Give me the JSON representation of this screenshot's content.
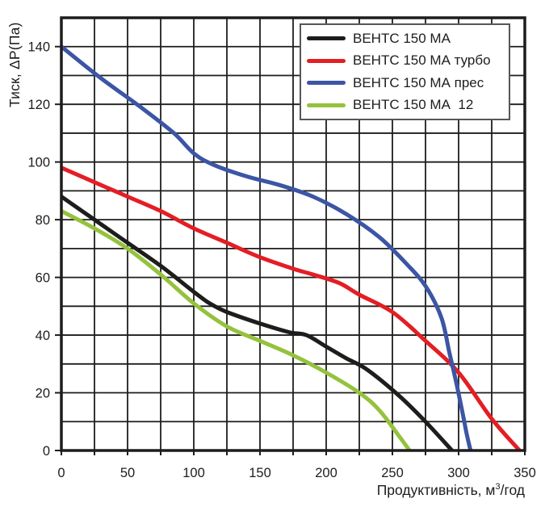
{
  "chart_data": {
    "type": "line",
    "title": "",
    "xlabel": "Продуктивність, м³/год",
    "xlabel_parts": {
      "prefix": "Продуктивність, м",
      "sup": "3",
      "suffix": "/год"
    },
    "ylabel": "Тиск, ΔP(Па)",
    "xlim": [
      0,
      350
    ],
    "ylim": [
      0,
      150
    ],
    "x_grid_step": 25,
    "y_grid_step": 10,
    "x_tick_labels": [
      "0",
      "50",
      "100",
      "150",
      "200",
      "250",
      "300",
      "350"
    ],
    "x_tick_values": [
      0,
      50,
      100,
      150,
      200,
      250,
      300,
      350
    ],
    "y_tick_labels": [
      "0",
      "20",
      "40",
      "60",
      "80",
      "100",
      "120",
      "140"
    ],
    "y_tick_values": [
      0,
      20,
      40,
      60,
      80,
      100,
      120,
      140
    ],
    "grid": true,
    "legend_position": "top-right",
    "colors": {
      "grid": "#1d1d1b",
      "frame": "#1d1d1b",
      "text": "#1d1d1b",
      "legend_border": "#575756",
      "background": "#ffffff"
    },
    "series": [
      {
        "name": "ВЕНТС 150 МА",
        "color": "#1d1d1b",
        "points": [
          [
            0,
            88
          ],
          [
            25,
            80
          ],
          [
            50,
            72
          ],
          [
            75,
            64
          ],
          [
            100,
            55
          ],
          [
            112,
            51
          ],
          [
            125,
            48
          ],
          [
            150,
            44
          ],
          [
            172,
            41
          ],
          [
            185,
            40
          ],
          [
            200,
            36
          ],
          [
            215,
            32
          ],
          [
            231,
            28
          ],
          [
            255,
            19
          ],
          [
            275,
            10
          ],
          [
            295,
            0
          ]
        ]
      },
      {
        "name": "ВЕНТС 150 МА турбо",
        "color": "#e31e24",
        "points": [
          [
            0,
            98
          ],
          [
            25,
            93
          ],
          [
            50,
            88
          ],
          [
            75,
            83
          ],
          [
            100,
            77
          ],
          [
            125,
            72
          ],
          [
            150,
            67
          ],
          [
            175,
            63
          ],
          [
            190,
            61
          ],
          [
            210,
            58
          ],
          [
            225,
            54
          ],
          [
            250,
            48
          ],
          [
            275,
            38
          ],
          [
            300,
            27
          ],
          [
            325,
            11
          ],
          [
            346,
            0
          ]
        ]
      },
      {
        "name": "ВЕНТС 150 МА прес",
        "color": "#3c55a5",
        "points": [
          [
            0,
            140
          ],
          [
            30,
            129
          ],
          [
            60,
            119
          ],
          [
            85,
            110
          ],
          [
            100,
            103
          ],
          [
            115,
            99
          ],
          [
            140,
            95
          ],
          [
            165,
            92
          ],
          [
            190,
            88
          ],
          [
            215,
            82
          ],
          [
            240,
            74
          ],
          [
            260,
            65
          ],
          [
            275,
            57
          ],
          [
            287,
            46
          ],
          [
            293,
            34
          ],
          [
            298,
            24
          ],
          [
            303,
            13
          ],
          [
            306,
            6
          ],
          [
            309,
            0
          ]
        ]
      },
      {
        "name": "ВЕНТС 150 МА  12",
        "color": "#95c23d",
        "points": [
          [
            0,
            83
          ],
          [
            25,
            77
          ],
          [
            50,
            70
          ],
          [
            75,
            61
          ],
          [
            100,
            51
          ],
          [
            125,
            43
          ],
          [
            150,
            38
          ],
          [
            175,
            33
          ],
          [
            200,
            27
          ],
          [
            225,
            20
          ],
          [
            240,
            14
          ],
          [
            255,
            5
          ],
          [
            263,
            0
          ]
        ]
      }
    ]
  }
}
